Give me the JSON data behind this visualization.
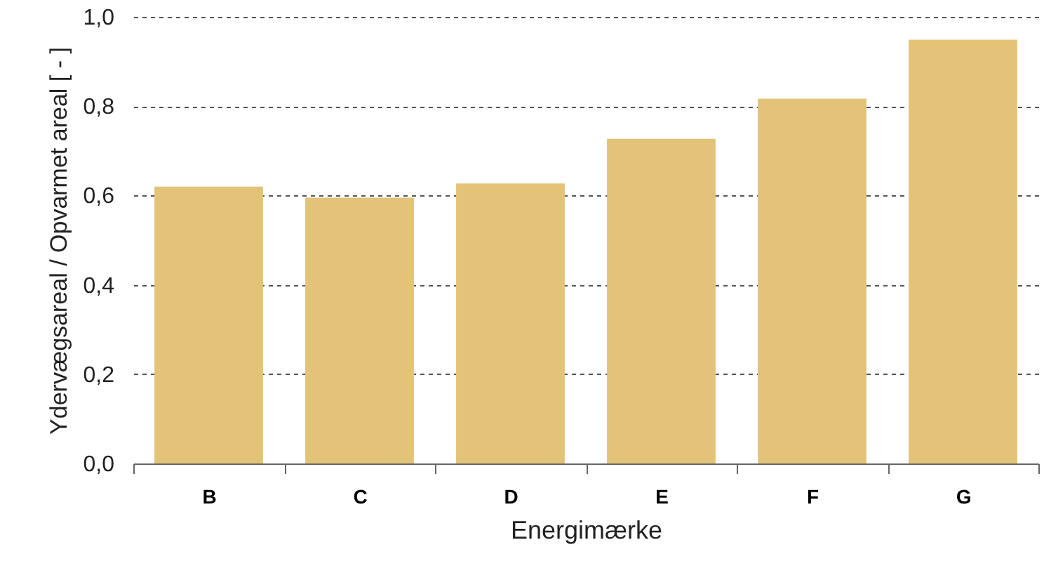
{
  "chart_data": {
    "type": "bar",
    "xlabel": "Energimærke",
    "ylabel": "Ydervægsareal / Opvarmet areal [ - ]",
    "categories": [
      "B",
      "C",
      "D",
      "E",
      "F",
      "G"
    ],
    "values": [
      0.62,
      0.595,
      0.627,
      0.727,
      0.817,
      0.949
    ],
    "color": "#e3c378",
    "ylim": [
      0,
      1
    ],
    "yticks": [
      {
        "value": 0,
        "label": "0,0"
      },
      {
        "value": 0.2,
        "label": "0,2"
      },
      {
        "value": 0.4,
        "label": "0,4"
      },
      {
        "value": 0.6,
        "label": "0,6"
      },
      {
        "value": 0.8,
        "label": "0,8"
      },
      {
        "value": 1,
        "label": "1,0"
      }
    ],
    "grid": "y"
  }
}
